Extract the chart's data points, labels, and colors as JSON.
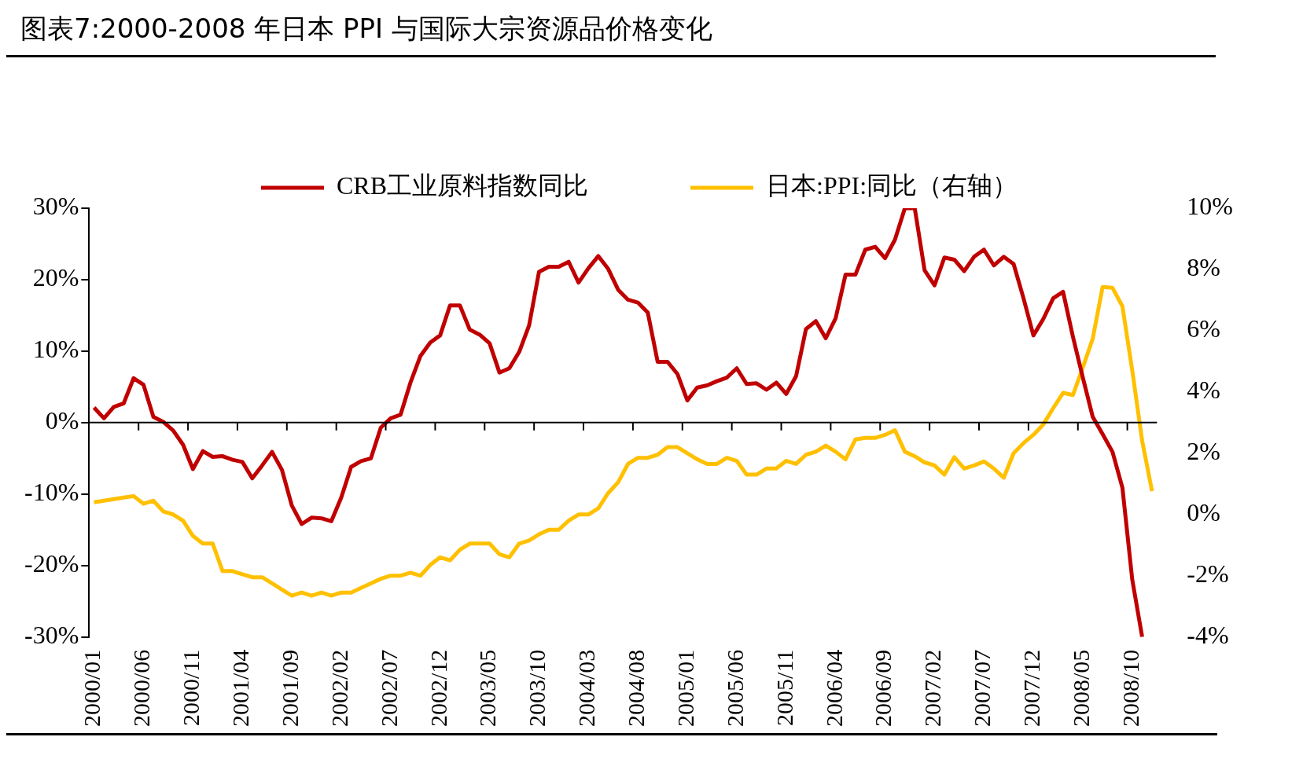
{
  "chart_data": {
    "type": "line",
    "title": "图表7:2000-2008 年日本 PPI 与国际大宗资源品价格变化",
    "categories": [
      "2000/01",
      null,
      null,
      null,
      null,
      "2000/06",
      null,
      null,
      null,
      null,
      "2000/11",
      null,
      null,
      null,
      null,
      "2001/04",
      null,
      null,
      null,
      null,
      "2001/09",
      null,
      null,
      null,
      null,
      "2002/02",
      null,
      null,
      null,
      null,
      "2002/07",
      null,
      null,
      null,
      null,
      "2002/12",
      null,
      null,
      null,
      null,
      "2003/05",
      null,
      null,
      null,
      null,
      "2003/10",
      null,
      null,
      null,
      null,
      "2004/03",
      null,
      null,
      null,
      null,
      "2004/08",
      null,
      null,
      null,
      null,
      "2005/01",
      null,
      null,
      null,
      null,
      "2005/06",
      null,
      null,
      null,
      null,
      "2005/11",
      null,
      null,
      null,
      null,
      "2006/04",
      null,
      null,
      null,
      null,
      "2006/09",
      null,
      null,
      null,
      null,
      "2007/02",
      null,
      null,
      null,
      null,
      "2007/07",
      null,
      null,
      null,
      null,
      "2007/12",
      null,
      null,
      null,
      null,
      "2008/05",
      null,
      null,
      null,
      null,
      "2008/10",
      null,
      null
    ],
    "series": [
      {
        "name": "CRB工业原料指数同比",
        "color": "#c00000",
        "values": [
          2.1,
          0.6,
          2.2,
          2.7,
          6.2,
          5.3,
          0.8,
          0.1,
          -1.1,
          -3.1,
          -6.5,
          -4.0,
          -4.8,
          -4.7,
          -5.2,
          -5.5,
          -7.8,
          -6.0,
          -4.1,
          -6.6,
          -11.6,
          -14.2,
          -13.3,
          -13.4,
          -13.8,
          -10.5,
          -6.2,
          -5.4,
          -5.0,
          -0.7,
          0.6,
          1.1,
          5.6,
          9.3,
          11.2,
          12.2,
          16.4,
          16.4,
          13.0,
          12.3,
          11.1,
          7.0,
          7.6,
          9.9,
          13.6,
          21.1,
          21.8,
          21.8,
          22.5,
          19.6,
          21.6,
          23.3,
          21.5,
          18.6,
          17.2,
          16.8,
          15.4,
          8.5,
          8.5,
          6.8,
          3.1,
          4.9,
          5.2,
          5.8,
          6.3,
          7.6,
          5.4,
          5.5,
          4.6,
          5.6,
          4.0,
          6.5,
          13.1,
          14.2,
          11.8,
          14.6,
          20.7,
          20.7,
          24.2,
          24.6,
          23.0,
          25.6,
          30,
          30,
          21.3,
          19.2,
          23.1,
          22.8,
          21.2,
          23.2,
          24.2,
          22.0,
          23.2,
          22.2,
          17.4,
          12.2,
          14.5,
          17.4,
          18.3,
          12.0,
          6.3,
          0.8,
          -1.6,
          -4.1,
          -9.1,
          -22,
          -30,
          null
        ]
      },
      {
        "name": "日本:PPI:同比（右轴）",
        "color": "#ffc000",
        "axis": "y2",
        "values": [
          0.4,
          0.45,
          0.5,
          0.55,
          0.6,
          0.35,
          0.45,
          0.1,
          0,
          -0.2,
          -0.7,
          -0.95,
          -0.95,
          -1.85,
          -1.85,
          -1.95,
          -2.05,
          -2.05,
          -2.25,
          -2.45,
          -2.65,
          -2.55,
          -2.65,
          -2.55,
          -2.65,
          -2.55,
          -2.55,
          -2.4,
          -2.25,
          -2.1,
          -2.0,
          -2.0,
          -1.9,
          -2.0,
          -1.65,
          -1.4,
          -1.5,
          -1.15,
          -0.95,
          -0.95,
          -0.95,
          -1.3,
          -1.4,
          -0.95,
          -0.85,
          -0.65,
          -0.5,
          -0.5,
          -0.2,
          0,
          0,
          0.2,
          0.7,
          1.05,
          1.65,
          1.85,
          1.85,
          1.95,
          2.2,
          2.2,
          2.0,
          1.8,
          1.65,
          1.65,
          1.85,
          1.75,
          1.3,
          1.3,
          1.5,
          1.5,
          1.75,
          1.65,
          1.95,
          2.05,
          2.25,
          2.05,
          1.8,
          2.45,
          2.5,
          2.5,
          2.6,
          2.75,
          2.05,
          1.9,
          1.7,
          1.6,
          1.3,
          1.87,
          1.5,
          1.6,
          1.73,
          1.5,
          1.2,
          2.0,
          2.33,
          2.6,
          2.94,
          3.47,
          3.97,
          3.9,
          4.8,
          5.74,
          7.43,
          7.4,
          6.8,
          4.7,
          2.4,
          0.76
        ]
      }
    ],
    "ylim": [
      -30,
      30
    ],
    "yticks": [
      {
        "value": -30,
        "label": "-30%"
      },
      {
        "value": -20,
        "label": "-20%"
      },
      {
        "value": -10,
        "label": "-10%"
      },
      {
        "value": 0,
        "label": "0%"
      },
      {
        "value": 10,
        "label": "10%"
      },
      {
        "value": 20,
        "label": "20%"
      },
      {
        "value": 30,
        "label": "30%"
      }
    ],
    "y2lim": [
      -4,
      10
    ],
    "y2ticks": [
      {
        "value": -4,
        "label": "-4%"
      },
      {
        "value": -2,
        "label": "-2%"
      },
      {
        "value": 0,
        "label": "0%"
      },
      {
        "value": 2,
        "label": "2%"
      },
      {
        "value": 4,
        "label": "4%"
      },
      {
        "value": 6,
        "label": "6%"
      },
      {
        "value": 8,
        "label": "8%"
      },
      {
        "value": 10,
        "label": "10%"
      }
    ],
    "legend": "top",
    "marker": "none"
  }
}
